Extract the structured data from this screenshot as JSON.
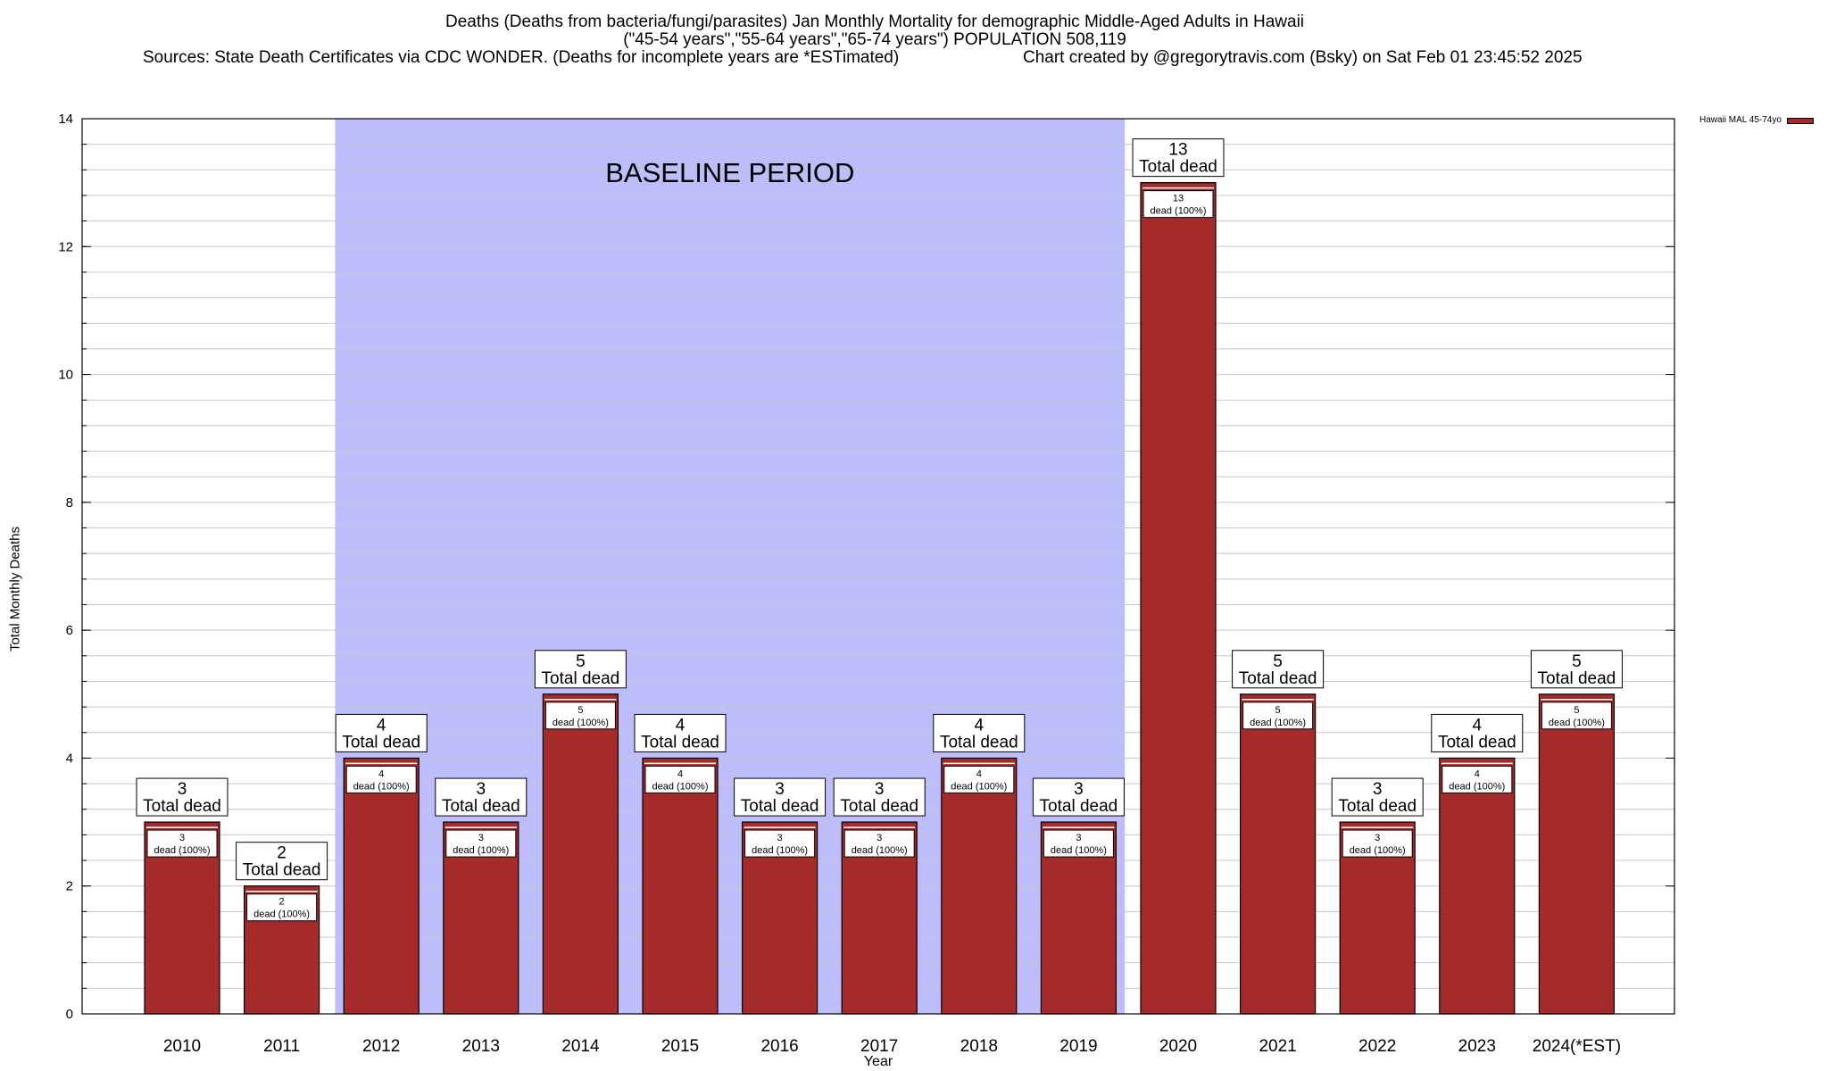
{
  "title_line1": "Deaths (Deaths from bacteria/fungi/parasites) Jan Monthly Mortality for demographic Middle-Aged Adults in Hawaii",
  "title_line2": "(\"45-54 years\",\"55-64 years\",\"65-74 years\") POPULATION 508,119",
  "sources": "Sources: State Death Certificates via CDC WONDER. (Deaths for incomplete years are *ESTimated)",
  "credit": "Chart created by @gregorytravis.com (Bsky) on Sat Feb 01 23:45:52 2025",
  "colors": {
    "bar": "#a52a2a",
    "baseline_band": "#bdbdfb",
    "grid": "#c8c8c8"
  },
  "chart_data": {
    "type": "bar",
    "title": "Deaths (Deaths from bacteria/fungi/parasites) Jan Monthly Mortality for demographic Middle-Aged Adults in Hawaii",
    "xlabel": "Year",
    "ylabel": "Total Monthly Deaths",
    "ylim": [
      0,
      14
    ],
    "yticks": [
      0,
      2,
      4,
      6,
      8,
      10,
      12,
      14
    ],
    "categories": [
      "2010",
      "2011",
      "2012",
      "2013",
      "2014",
      "2015",
      "2016",
      "2017",
      "2018",
      "2019",
      "2020",
      "2021",
      "2022",
      "2023",
      "2024(*EST)"
    ],
    "series": [
      {
        "name": "Hawaii MAL 45-74yo",
        "values": [
          3,
          2,
          4,
          3,
          5,
          4,
          3,
          3,
          4,
          3,
          13,
          5,
          3,
          4,
          5
        ]
      }
    ],
    "top_label_text": "Total dead",
    "inner_label_text": "dead (100%)",
    "baseline_period": {
      "label": "BASELINE PERIOD",
      "from": "2012",
      "to": "2019"
    },
    "grid": true,
    "legend_position": "top-right"
  }
}
